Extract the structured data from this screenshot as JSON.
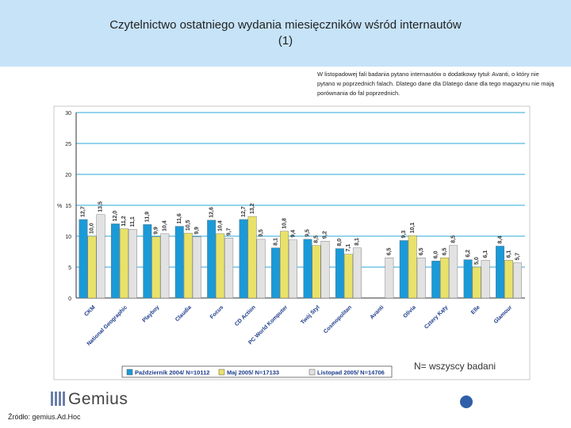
{
  "header": {
    "title_line1": "Czytelnictwo ostatniego wydania miesięczników wśród internautów",
    "title_line2": "(1)"
  },
  "note": {
    "text": "W listopadowej fali badania pytano internautów o dodatkowy tytuł: Avanti, o który nie pytano w poprzednich falach. Dlatego dane dla Dlatego dane dla tego magazynu nie mają porównania do fal poprzednich."
  },
  "footer": {
    "n_label": "N= wszyscy badani",
    "logo_text": "Gemius",
    "source": "Źródło: gemius.Ad.Hoc"
  },
  "chart_data": {
    "type": "bar",
    "ylim": [
      0,
      30
    ],
    "yticks": [
      0,
      5,
      10,
      15,
      20,
      25,
      30
    ],
    "ylabel": "%",
    "grid": true,
    "legend_position": "bottom",
    "categories": [
      "CKM",
      "National Geographic",
      "Playboy",
      "Claudia",
      "Focus",
      "CD Action",
      "PC World Komputer",
      "Twój Styl",
      "Cosmopolitan",
      "Avanti",
      "Olivia",
      "Cztery Kąty",
      "Elle",
      "Glamour"
    ],
    "series": [
      {
        "name": "Październik 2004/ N=10112",
        "color": "#1a9ad8",
        "values": [
          12.7,
          12.0,
          11.9,
          11.6,
          12.6,
          12.7,
          8.1,
          9.5,
          8.0,
          null,
          9.3,
          6.0,
          6.2,
          8.4
        ]
      },
      {
        "name": "Maj 2005/ N=17133",
        "color": "#e8e26a",
        "values": [
          10.0,
          11.2,
          9.9,
          10.5,
          10.4,
          13.2,
          10.8,
          8.5,
          7.1,
          null,
          10.1,
          6.5,
          5.0,
          6.1
        ]
      },
      {
        "name": "Listopad 2005/ N=14706",
        "color": "#e2e2e2",
        "values": [
          13.5,
          11.1,
          10.4,
          9.9,
          9.7,
          9.5,
          9.4,
          9.2,
          8.1,
          6.5,
          6.5,
          8.5,
          6.1,
          5.7
        ]
      }
    ]
  }
}
